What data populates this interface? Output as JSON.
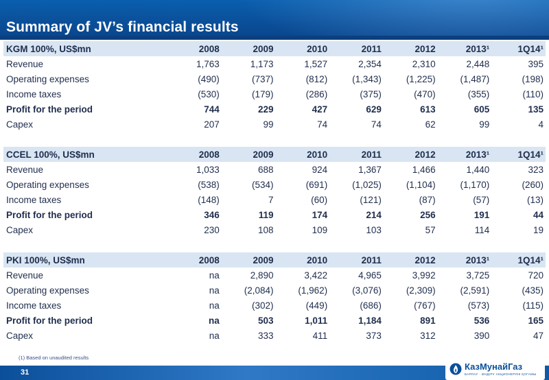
{
  "slide": {
    "title": "Summary of JV’s financial results",
    "footnote": "(1) Based on unaudited results",
    "page_number": "31",
    "logo_text": "КазМунайГаз",
    "logo_subtitle": "БАРЛАУ · ӨНДІРУ АКЦИОНЕРЛІК ҚОГАМЫ"
  },
  "sections": [
    {
      "header": [
        "KGM 100%, US$mn",
        "2008",
        "2009",
        "2010",
        "2011",
        "2012",
        "2013¹",
        "1Q14¹"
      ],
      "rows": [
        [
          "Revenue",
          "1,763",
          "1,173",
          "1,527",
          "2,354",
          "2,310",
          "2,448",
          "395"
        ],
        [
          "Operating expenses",
          "(490)",
          "(737)",
          "(812)",
          "(1,343)",
          "(1,225)",
          "(1,487)",
          "(198)"
        ],
        [
          "Income taxes",
          "(530)",
          "(179)",
          "(286)",
          "(375)",
          "(470)",
          "(355)",
          "(110)"
        ],
        [
          "Profit for the period",
          "744",
          "229",
          "427",
          "629",
          "613",
          "605",
          "135"
        ],
        [
          "Capex",
          "207",
          "99",
          "74",
          "74",
          "62",
          "99",
          "4"
        ]
      ]
    },
    {
      "header": [
        "CCEL 100%, US$mn",
        "2008",
        "2009",
        "2010",
        "2011",
        "2012",
        "2013¹",
        "1Q14¹"
      ],
      "rows": [
        [
          "Revenue",
          "1,033",
          "688",
          "924",
          "1,367",
          "1,466",
          "1,440",
          "323"
        ],
        [
          "Operating expenses",
          "(538)",
          "(534)",
          "(691)",
          "(1,025)",
          "(1,104)",
          "(1,170)",
          "(260)"
        ],
        [
          "Income taxes",
          "(148)",
          "7",
          "(60)",
          "(121)",
          "(87)",
          "(57)",
          "(13)"
        ],
        [
          "Profit for the period",
          "346",
          "119",
          "174",
          "214",
          "256",
          "191",
          "44"
        ],
        [
          "Capex",
          "230",
          "108",
          "109",
          "103",
          "57",
          "114",
          "19"
        ]
      ]
    },
    {
      "header": [
        "PKI 100%, US$mn",
        "2008",
        "2009",
        "2010",
        "2011",
        "2012",
        "2013¹",
        "1Q14¹"
      ],
      "rows": [
        [
          "Revenue",
          "na",
          "2,890",
          "3,422",
          "4,965",
          "3,992",
          "3,725",
          "720"
        ],
        [
          "Operating expenses",
          "na",
          "(2,084)",
          "(1,962)",
          "(3,076)",
          "(2,309)",
          "(2,591)",
          "(435)"
        ],
        [
          "Income taxes",
          "na",
          "(302)",
          "(449)",
          "(686)",
          "(767)",
          "(573)",
          "(115)"
        ],
        [
          "Profit for the period",
          "na",
          "503",
          "1,011",
          "1,184",
          "891",
          "536",
          "165"
        ],
        [
          "Capex",
          "na",
          "333",
          "411",
          "373",
          "312",
          "390",
          "47"
        ]
      ]
    }
  ]
}
